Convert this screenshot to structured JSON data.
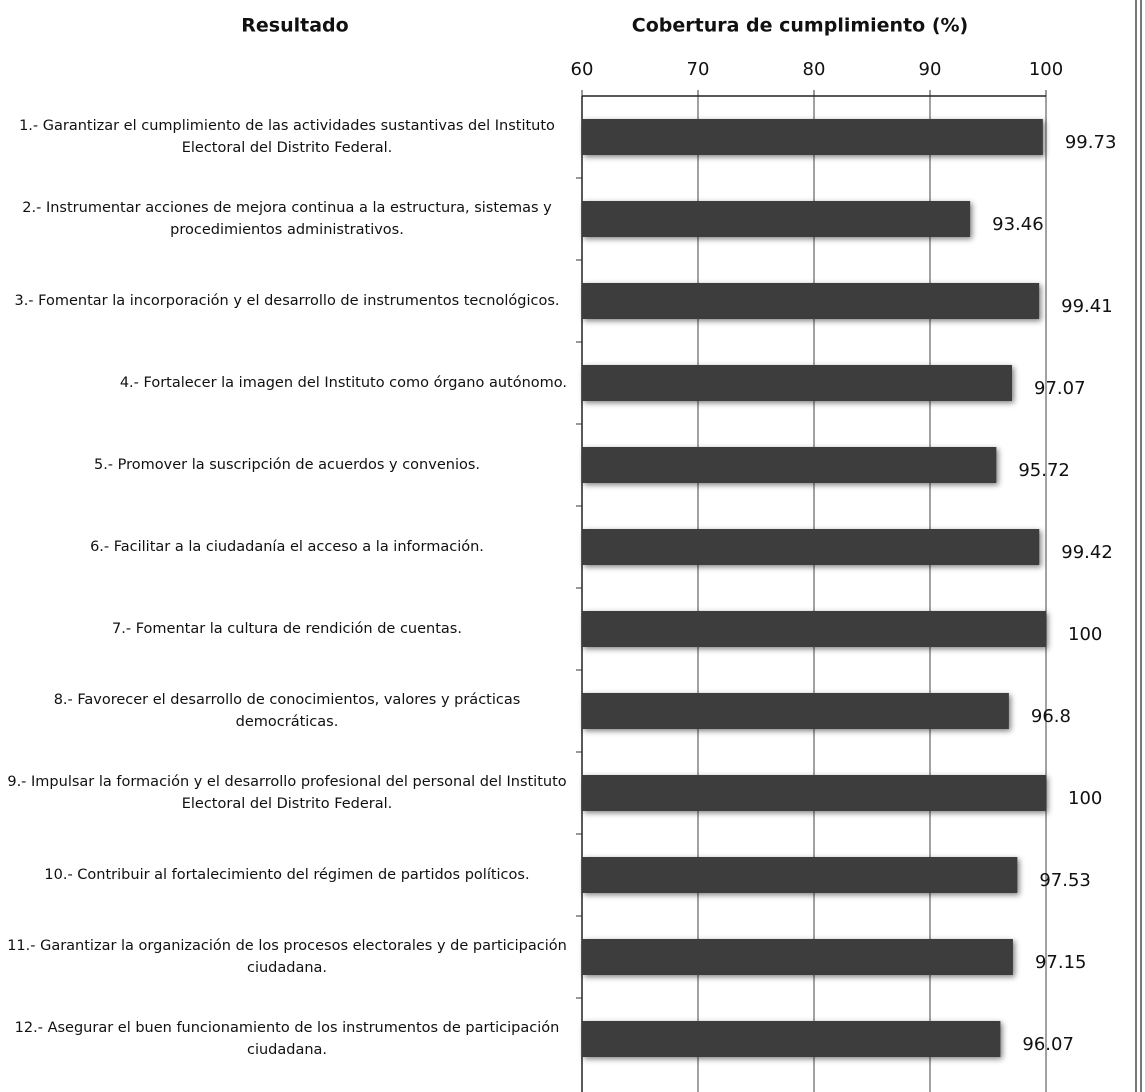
{
  "chart_data": {
    "type": "bar",
    "orientation": "horizontal",
    "category_axis_label": "Resultado",
    "value_axis_label": "Cobertura de cumplimiento (%)",
    "categories": [
      "1.- Garantizar el cumplimiento de las actividades sustantivas del Instituto Electoral del Distrito Federal.",
      "2.- Instrumentar acciones de mejora continua a la estructura, sistemas y procedimientos administrativos.",
      "3.- Fomentar la incorporación y el desarrollo de instrumentos tecnológicos.",
      "4.- Fortalecer la imagen del Instituto como órgano autónomo.",
      "5.- Promover la suscripción de acuerdos y convenios.",
      "6.- Facilitar a la ciudadanía el acceso a la información.",
      "7.- Fomentar la cultura de rendición de cuentas.",
      "8.- Favorecer el desarrollo de conocimientos, valores y prácticas democráticas.",
      "9.- Impulsar la formación y el desarrollo profesional del personal del Instituto Electoral del Distrito Federal.",
      "10.- Contribuir al fortalecimiento del régimen de partidos políticos.",
      "11.- Garantizar la organización de los procesos electorales y de participación ciudadana.",
      "12.- Asegurar el buen funcionamiento de los instrumentos de participación ciudadana."
    ],
    "values": [
      99.73,
      93.46,
      99.41,
      97.07,
      95.72,
      99.42,
      100,
      96.8,
      100,
      97.53,
      97.15,
      96.07
    ],
    "color": "#3c3c3c",
    "xlim": [
      60,
      100
    ],
    "xticks": [
      60,
      70,
      80,
      90,
      100
    ],
    "grid": true
  }
}
